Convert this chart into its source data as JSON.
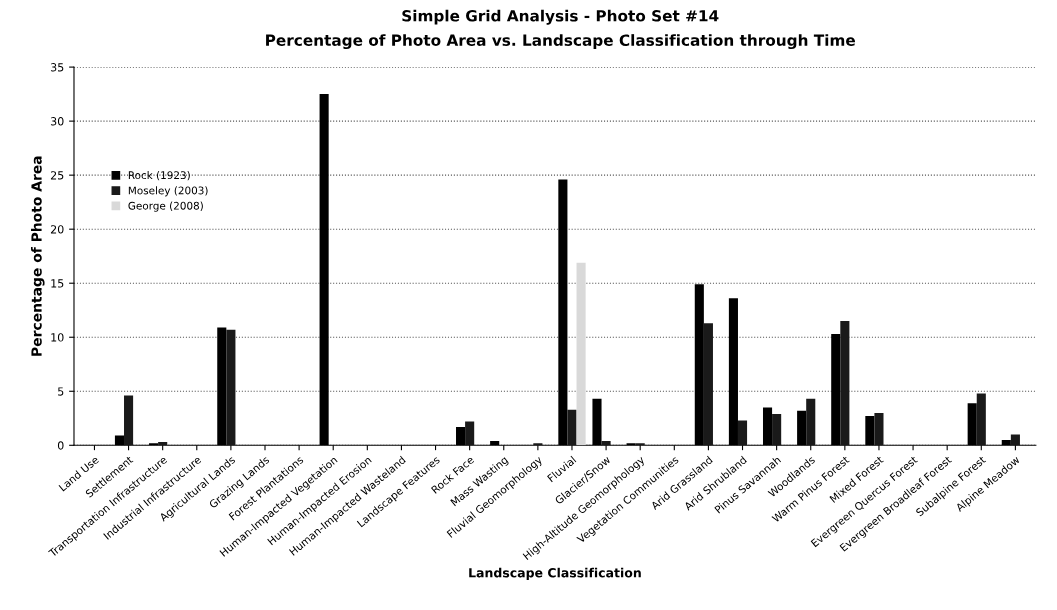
{
  "chart_data": {
    "type": "bar",
    "title": "Simple Grid Analysis - Photo Set #14",
    "subtitle": "Percentage of Photo Area vs. Landscape Classification through Time",
    "xlabel": "Landscape Classification",
    "ylabel": "Percentage of Photo Area",
    "categories": [
      "Land Use",
      "Settlement",
      "Transportation Infrastructure",
      "Industrial Infrastructure",
      "Agricultural Lands",
      "Grazing Lands",
      "Forest Plantations",
      "Human-Impacted Vegetation",
      "Human-Impacted Erosion",
      "Human-Impacted Wasteland",
      "Landscape Features",
      "Rock Face",
      "Mass Wasting",
      "Fluvial Geomorphology",
      "Fluvial",
      "Glacier/Snow",
      "High-Altitude Geomorphology",
      "Vegetation Communities",
      "Arid Grassland",
      "Arid Shrubland",
      "Pinus Savannah",
      "Woodlands",
      "Warm Pinus Forest",
      "Mixed Forest",
      "Evergreen Quercus Forest",
      "Evergreen Broadleaf Forest",
      "Subalpine Forest",
      "Alpine Meadow"
    ],
    "series": [
      {
        "name": "Rock (1923)",
        "color": "#000000",
        "values": [
          0,
          0.9,
          0.2,
          0,
          10.9,
          0,
          0,
          32.5,
          0,
          0,
          0,
          1.7,
          0.4,
          0,
          24.6,
          4.3,
          0.2,
          0,
          14.9,
          13.6,
          3.5,
          3.2,
          10.3,
          2.7,
          0,
          0,
          3.9,
          0.5
        ]
      },
      {
        "name": "Moseley (2003)",
        "color": "#1a1a1a",
        "values": [
          0,
          4.6,
          0.3,
          0,
          10.7,
          0,
          0,
          0,
          0,
          0,
          0,
          2.2,
          0,
          0.2,
          3.3,
          0.4,
          0.2,
          0,
          11.3,
          2.3,
          2.9,
          4.3,
          11.5,
          3.0,
          0,
          0,
          4.8,
          1.0
        ]
      },
      {
        "name": "George (2008)",
        "color": "#d9d9d9",
        "values": [
          null,
          null,
          null,
          null,
          null,
          null,
          null,
          null,
          null,
          null,
          null,
          null,
          null,
          null,
          16.9,
          null,
          null,
          null,
          null,
          null,
          null,
          null,
          null,
          null,
          null,
          null,
          null,
          null
        ]
      }
    ],
    "ylim": [
      0,
      35
    ],
    "yticks": [
      0,
      5,
      10,
      15,
      20,
      25,
      30,
      35
    ],
    "grid": "y",
    "legend": "top left"
  }
}
